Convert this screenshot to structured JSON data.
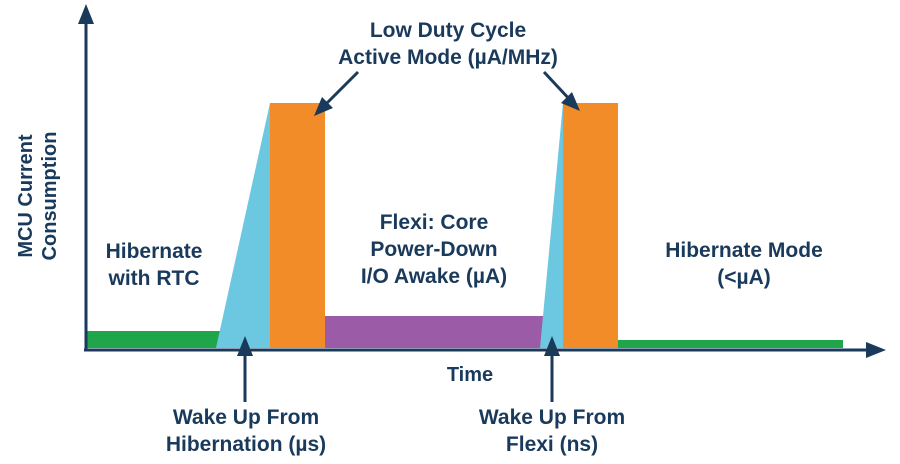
{
  "colors": {
    "axis": "#1a3a5c",
    "text": "#1a3a5c",
    "hibernate": "#1fa64a",
    "wake": "#6cc7e0",
    "active": "#f28c28",
    "flexi": "#9b5ba6"
  },
  "axes": {
    "y_label_line1": "MCU Current",
    "y_label_line2": "Consumption",
    "x_label": "Time"
  },
  "labels": {
    "active_mode": [
      "Low Duty Cycle",
      "Active Mode (µA/MHz)"
    ],
    "hibernate_rtc": [
      "Hibernate",
      "with RTC"
    ],
    "flexi": [
      "Flexi: Core",
      "Power-Down",
      "I/O Awake (µA)"
    ],
    "hibernate_mode": [
      "Hibernate Mode",
      "(<µA)"
    ],
    "wake_hibernation": [
      "Wake Up From",
      "Hibernation (µs)"
    ],
    "wake_flexi": [
      "Wake Up From",
      "Flexi (ns)"
    ]
  }
}
